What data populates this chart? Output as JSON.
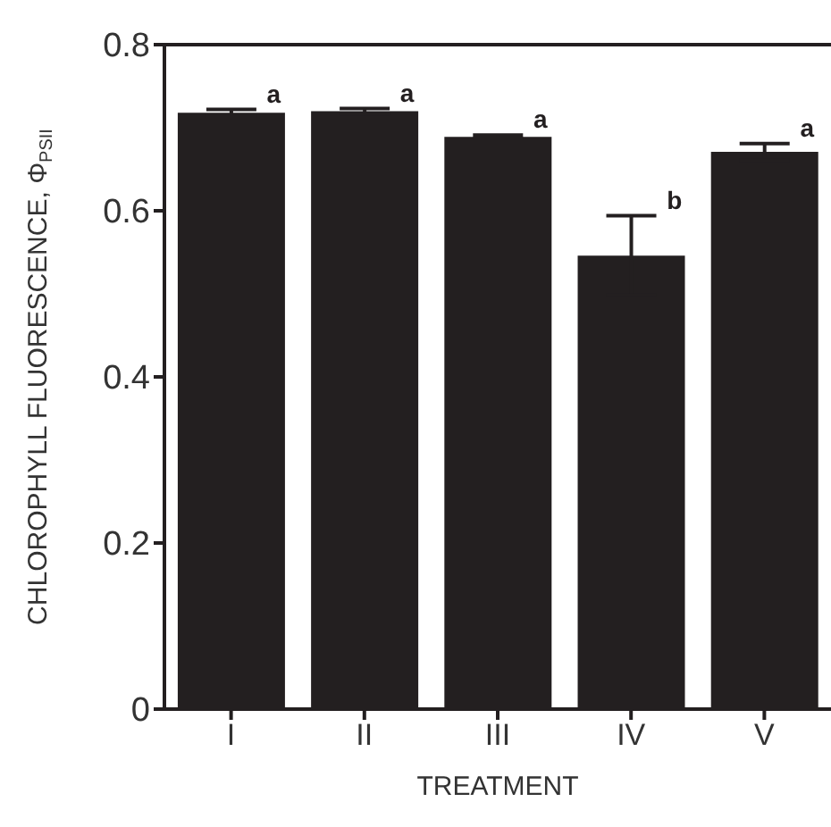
{
  "chart_data": {
    "type": "bar",
    "xlabel": "TREATMENT",
    "ylabel": "CHLOROPHYLL FLUORESCENCE, Φ$_{PSII}$",
    "categories": [
      "I",
      "II",
      "III",
      "IV",
      "V"
    ],
    "values": [
      0.718,
      0.72,
      0.689,
      0.546,
      0.671
    ],
    "errors": [
      0.004,
      0.003,
      0.002,
      0.048,
      0.01
    ],
    "color": "#231f20",
    "ylim": [
      0,
      0.8
    ],
    "yticks": [
      0,
      0.2,
      0.4,
      0.6,
      0.8
    ],
    "grid": false,
    "annotations": [
      {
        "text": "a",
        "x": "I",
        "y": 0.722
      },
      {
        "text": "a",
        "x": "II",
        "y": 0.723
      },
      {
        "text": "a",
        "x": "III",
        "y": 0.691
      },
      {
        "text": "b",
        "x": "IV",
        "y": 0.594
      },
      {
        "text": "a",
        "x": "V",
        "y": 0.681
      }
    ]
  }
}
